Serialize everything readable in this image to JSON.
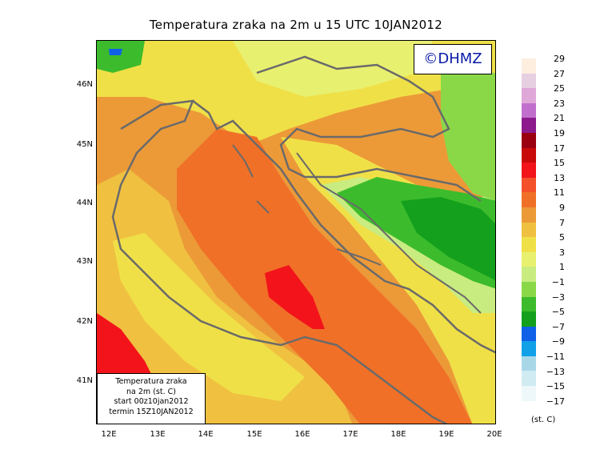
{
  "title": "Temperatura zraka na 2m u 15 UTC 10JAN2012",
  "watermark": "©DHMZ",
  "info_box": {
    "line1": "Temperatura zraka",
    "line2": "na 2m (st. C)",
    "line3": "start 00z10jan2012",
    "line4": "termin 15Z10JAN2012"
  },
  "lat_labels": [
    "46N",
    "45N",
    "44N",
    "43N",
    "42N",
    "41N"
  ],
  "lon_labels": [
    "12E",
    "13E",
    "14E",
    "15E",
    "16E",
    "17E",
    "18E",
    "19E",
    "20E"
  ],
  "colorbar": {
    "unit": "(st. C)",
    "labels": [
      "29",
      "27",
      "25",
      "23",
      "21",
      "19",
      "17",
      "15",
      "13",
      "11",
      "9",
      "7",
      "5",
      "3",
      "1",
      "−1",
      "−3",
      "−5",
      "−7",
      "−9",
      "−11",
      "−13",
      "−15",
      "−17"
    ],
    "colors": [
      "#fdeee0",
      "#e6cfe0",
      "#e0a8d8",
      "#c070cc",
      "#8c1a8c",
      "#9a0010",
      "#c80a0a",
      "#f2141a",
      "#f4502a",
      "#f07028",
      "#ec9a38",
      "#f0c040",
      "#f0e048",
      "#e8f070",
      "#c8ec80",
      "#8ad848",
      "#3cbc2c",
      "#14a01c",
      "#1060e8",
      "#12a0e8",
      "#a8d8e8",
      "#d0ecf2",
      "#eef8fa"
    ]
  }
}
